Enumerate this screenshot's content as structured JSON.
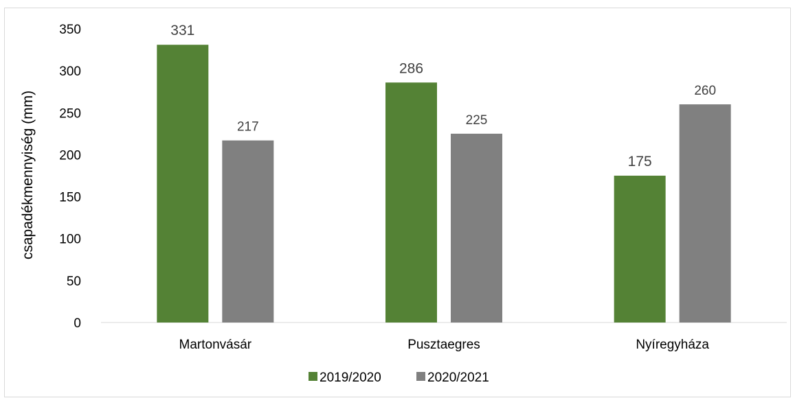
{
  "chart_data": {
    "type": "bar",
    "categories": [
      "Martonvásár",
      "Pusztaegres",
      "Nyíregyháza"
    ],
    "series": [
      {
        "name": "2019/2020",
        "values": [
          331,
          286,
          175
        ],
        "color": "#548235"
      },
      {
        "name": "2020/2021",
        "values": [
          217,
          225,
          260
        ],
        "color": "#808080"
      }
    ],
    "ylabel": "csapadékmennyiség (mm)",
    "xlabel": "",
    "ylim": [
      0,
      350
    ],
    "yticks": [
      0,
      50,
      100,
      150,
      200,
      250,
      300,
      350
    ],
    "grid": false,
    "legend": "bottom",
    "data_labels": true
  }
}
